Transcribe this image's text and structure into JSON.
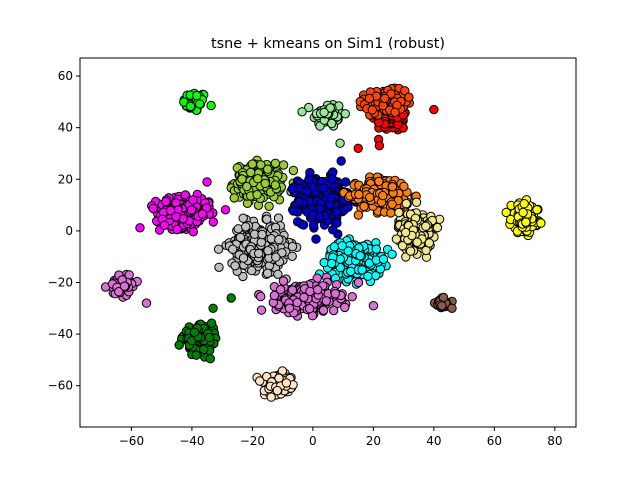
{
  "chart_data": {
    "type": "scatter",
    "title": "tsne + kmeans on Sim1 (robust)",
    "xlabel": "",
    "ylabel": "",
    "xlim": [
      -77,
      87
    ],
    "ylim": [
      -76,
      67
    ],
    "xticks": [
      -60,
      -40,
      -20,
      0,
      20,
      40,
      60,
      80
    ],
    "yticks": [
      -60,
      -40,
      -20,
      0,
      20,
      40,
      60
    ],
    "grid": false,
    "legend": "none",
    "marker_edge_color": "#000000",
    "clusters": [
      {
        "name": "green",
        "color": "#00ff00",
        "center": [
          -39,
          50
        ],
        "spread": [
          3.5,
          3.5
        ],
        "count": 70
      },
      {
        "name": "light-green",
        "color": "#98e698",
        "center": [
          5,
          45
        ],
        "spread": [
          4.5,
          4.5
        ],
        "count": 70
      },
      {
        "name": "red",
        "color": "#ff0000",
        "center": [
          26,
          43
        ],
        "spread": [
          5,
          4
        ],
        "count": 70
      },
      {
        "name": "orange-red",
        "color": "#ff4500",
        "center": [
          24,
          50
        ],
        "spread": [
          6,
          4
        ],
        "count": 140
      },
      {
        "name": "yellow-green",
        "color": "#9acd32",
        "center": [
          -18,
          19
        ],
        "spread": [
          7,
          6
        ],
        "count": 250
      },
      {
        "name": "blue",
        "color": "#0000cd",
        "center": [
          3,
          12
        ],
        "spread": [
          7,
          8
        ],
        "count": 320
      },
      {
        "name": "dark-orange",
        "color": "#ff7f0e",
        "center": [
          24,
          14
        ],
        "spread": [
          8,
          6
        ],
        "count": 260
      },
      {
        "name": "magenta",
        "color": "#ff00ff",
        "center": [
          -43,
          7
        ],
        "spread": [
          8,
          5
        ],
        "count": 260
      },
      {
        "name": "silver",
        "color": "#c0c0c0",
        "center": [
          -18,
          -6
        ],
        "spread": [
          8,
          8
        ],
        "count": 320
      },
      {
        "name": "khaki",
        "color": "#f0e68c",
        "center": [
          34,
          0
        ],
        "spread": [
          5,
          7
        ],
        "count": 210
      },
      {
        "name": "cyan",
        "color": "#00ffff",
        "center": [
          14,
          -11
        ],
        "spread": [
          8,
          6
        ],
        "count": 260
      },
      {
        "name": "pink",
        "color": "#da70d6",
        "center": [
          -2,
          -26
        ],
        "spread": [
          9,
          5
        ],
        "count": 260
      },
      {
        "name": "orchid",
        "color": "#da70d6",
        "center": [
          -63,
          -21
        ],
        "spread": [
          4,
          3.5
        ],
        "count": 80
      },
      {
        "name": "yellow",
        "color": "#ffff00",
        "center": [
          70,
          5
        ],
        "spread": [
          4,
          5
        ],
        "count": 130
      },
      {
        "name": "brown",
        "color": "#8b5a4a",
        "center": [
          43,
          -28
        ],
        "spread": [
          2.3,
          2.3
        ],
        "count": 35
      },
      {
        "name": "dark-green",
        "color": "#008000",
        "center": [
          -38,
          -42
        ],
        "spread": [
          4.5,
          4
        ],
        "count": 160
      },
      {
        "name": "bisque",
        "color": "#ffe4c4",
        "center": [
          -11,
          -60
        ],
        "spread": [
          4.5,
          3.5
        ],
        "count": 120
      }
    ],
    "outliers": [
      {
        "x": -27,
        "y": -26,
        "color": "#008000"
      },
      {
        "x": -33,
        "y": -30,
        "color": "#008000"
      },
      {
        "x": 15,
        "y": 32,
        "color": "#ff0000"
      },
      {
        "x": 22,
        "y": 33,
        "color": "#ff0000"
      },
      {
        "x": 40,
        "y": 47,
        "color": "#ff0000"
      },
      {
        "x": 9,
        "y": 34,
        "color": "#98e698"
      },
      {
        "x": -35,
        "y": 19,
        "color": "#ff00ff"
      },
      {
        "x": 20,
        "y": -29,
        "color": "#da70d6"
      },
      {
        "x": 46,
        "y": -30,
        "color": "#8b5a4a"
      },
      {
        "x": -55,
        "y": -28,
        "color": "#da70d6"
      }
    ]
  }
}
